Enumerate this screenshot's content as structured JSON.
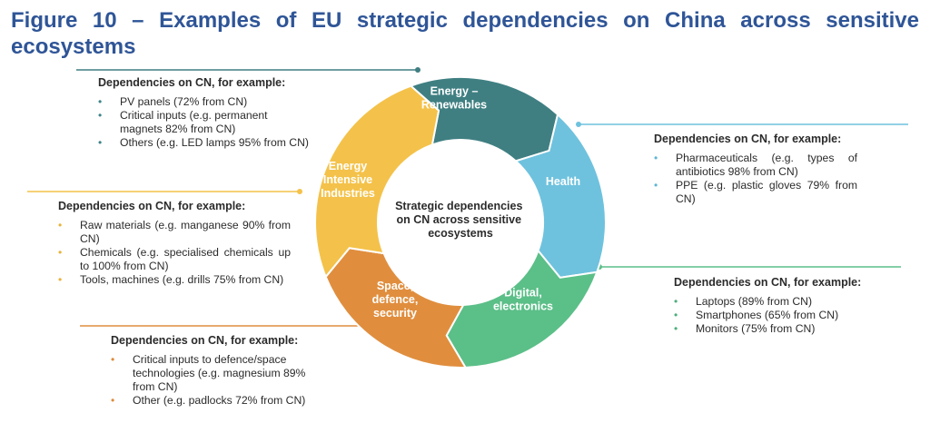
{
  "title": "Figure 10 – Examples of EU strategic dependencies on China across sensitive ecosystems",
  "center_label": "Strategic dependencies on CN across sensitive ecosystems",
  "colors": {
    "title": "#2f5597",
    "energy": "#3f7f82",
    "health": "#6ec2de",
    "digital": "#5bbf88",
    "space": "#e08e3e",
    "eii": "#f4c24a"
  },
  "segments": [
    {
      "id": "energy",
      "label": "Energy – Renewables"
    },
    {
      "id": "health",
      "label": "Health"
    },
    {
      "id": "digital",
      "label": "Digital, electronics"
    },
    {
      "id": "space",
      "label": "Space, defence, security"
    },
    {
      "id": "eii",
      "label": "Energy Intensive Industries"
    }
  ],
  "boxes": {
    "energy": {
      "heading": "Dependencies on CN, for example:",
      "items": [
        "PV panels (72% from CN)",
        "Critical inputs (e.g. permanent magnets 82% from CN)",
        "Others (e.g. LED lamps 95% from CN)"
      ]
    },
    "eii": {
      "heading": "Dependencies on CN, for example:",
      "items": [
        "Raw materials (e.g. manganese 90% from CN)",
        "Chemicals (e.g. specialised chemicals up to 100% from CN)",
        "Tools, machines (e.g. drills 75% from CN)"
      ]
    },
    "space": {
      "heading": "Dependencies on CN, for example:",
      "items": [
        "Critical inputs to defence/space technologies (e.g. magnesium 89% from CN)",
        "Other (e.g. padlocks 72% from CN)"
      ]
    },
    "health": {
      "heading": "Dependencies on CN, for example:",
      "items": [
        "Pharmaceuticals (e.g. types of antibiotics 98% from CN)",
        "PPE (e.g. plastic gloves 79% from CN)"
      ]
    },
    "digital": {
      "heading": "Dependencies on CN, for example:",
      "items": [
        "Laptops (89% from CN)",
        "Smartphones (65% from CN)",
        "Monitors (75% from CN)"
      ]
    }
  }
}
